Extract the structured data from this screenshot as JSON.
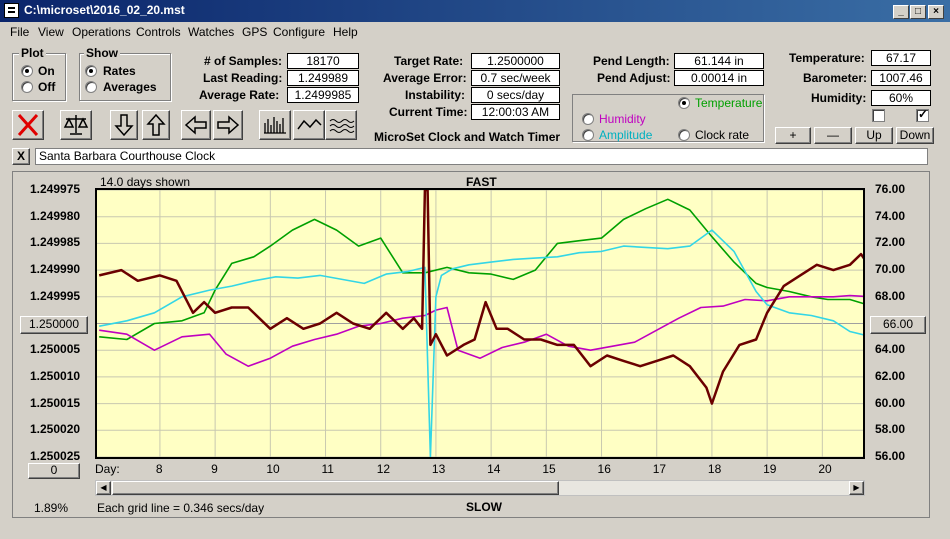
{
  "window": {
    "title": "C:\\microset\\2016_02_20.mst"
  },
  "menu": [
    "File",
    "View",
    "Operations",
    "Controls",
    "Watches",
    "GPS",
    "Configure",
    "Help"
  ],
  "plot_group": {
    "title": "Plot",
    "on": "On",
    "off": "Off",
    "selected": "On"
  },
  "show_group": {
    "title": "Show",
    "rates": "Rates",
    "averages": "Averages",
    "selected": "Rates"
  },
  "stats": {
    "samples_label": "# of Samples:",
    "samples": "18170",
    "last_label": "Last Reading:",
    "last": "1.249989",
    "avg_label": "Average Rate:",
    "avg": "1.2499985",
    "target_label": "Target Rate:",
    "target": "1.2500000",
    "avgerr_label": "Average Error:",
    "avgerr": "0.7 sec/week",
    "instab_label": "Instability:",
    "instab": "0 secs/day",
    "time_label": "Current Time:",
    "time": "12:00:03 AM",
    "pendlen_label": "Pend Length:",
    "pendlen": "61.144 in",
    "pendadj_label": "Pend Adjust:",
    "pendadj": "0.00014 in",
    "temp_label": "Temperature:",
    "temp": "67.17",
    "baro_label": "Barometer:",
    "baro": "1007.46",
    "hum_label": "Humidity:",
    "hum": "60%"
  },
  "app_caption": "MicroSet Clock and Watch Timer",
  "series_select": {
    "temperature": "Temperature",
    "humidity": "Humidity",
    "amplitude": "Amplitude",
    "clockrate": "Clock rate",
    "selected": "Temperature",
    "colors": {
      "temperature": "#00a000",
      "humidity": "#c000c0",
      "amplitude": "#00b0c0",
      "clockrate": "#000000"
    }
  },
  "right_buttons": {
    "plus": "+",
    "minus": "—",
    "up": "Up",
    "down": "Down"
  },
  "clock_name": "Santa Barbara Courthouse Clock",
  "close_x": "X",
  "chart_header": {
    "days_shown": "14.0 days shown",
    "fast": "FAST",
    "slow": "SLOW",
    "grid_note": "Each grid line = 0.346 secs/day",
    "percent": "1.89%",
    "day_label": "Day:"
  },
  "left_boxes": {
    "center": "1.250000",
    "bottom": "0"
  },
  "right_box": "66.00",
  "chart_data": {
    "type": "line",
    "x_label": "Day:",
    "x_ticks": [
      "8",
      "9",
      "10",
      "11",
      "12",
      "13",
      "14",
      "15",
      "16",
      "17",
      "18",
      "19",
      "20"
    ],
    "y_left_ticks": [
      "1.249975",
      "1.249980",
      "1.249985",
      "1.249990",
      "1.249995",
      "1.250000",
      "1.250005",
      "1.250010",
      "1.250015",
      "1.250020",
      "1.250025"
    ],
    "y_right_ticks": [
      "76.00",
      "74.00",
      "72.00",
      "70.00",
      "68.00",
      "66.00",
      "64.00",
      "62.00",
      "60.00",
      "58.00",
      "56.00"
    ],
    "ylim_left": [
      1.249975,
      1.250025
    ],
    "ylim_right": [
      56,
      76
    ],
    "grid": true,
    "series": [
      {
        "key": "clockrate",
        "color": "#6b0000",
        "x": [
          6.9,
          7.3,
          7.6,
          8.0,
          8.3,
          8.6,
          8.8,
          9.0,
          9.3,
          9.6,
          10.0,
          10.3,
          10.6,
          10.9,
          11.2,
          11.5,
          11.8,
          12.1,
          12.4,
          12.6,
          12.75,
          12.8,
          12.85,
          12.9,
          13.0,
          13.2,
          13.5,
          13.7,
          13.9,
          14.1,
          14.3,
          14.6,
          14.9,
          15.2,
          15.5,
          15.8,
          16.1,
          16.4,
          16.7,
          17.0,
          17.3,
          17.6,
          17.9,
          18.0,
          18.2,
          18.5,
          18.8,
          19.0,
          19.3,
          19.6,
          19.9,
          20.2,
          20.5,
          20.7,
          20.9
        ],
        "y": [
          1.249991,
          1.24999,
          1.249992,
          1.249991,
          1.249992,
          1.249998,
          1.249996,
          1.249998,
          1.249997,
          1.249997,
          1.250001,
          1.249999,
          1.250001,
          1.25,
          1.249998,
          1.25,
          1.250001,
          1.249998,
          1.250001,
          1.249999,
          1.250001,
          1.249975,
          1.249975,
          1.250004,
          1.250002,
          1.250006,
          1.250004,
          1.250003,
          1.249996,
          1.250001,
          1.250001,
          1.250003,
          1.250003,
          1.250004,
          1.250004,
          1.250008,
          1.250006,
          1.250007,
          1.250008,
          1.250007,
          1.250006,
          1.250008,
          1.250012,
          1.250015,
          1.250009,
          1.250004,
          1.250003,
          1.249998,
          1.249993,
          1.249991,
          1.249989,
          1.24999,
          1.249989,
          1.249987,
          1.24999
        ]
      },
      {
        "key": "temperature",
        "color": "#00a000",
        "x": [
          6.9,
          7.4,
          7.9,
          8.4,
          8.8,
          9.0,
          9.3,
          9.7,
          10.0,
          10.4,
          10.8,
          11.2,
          11.6,
          12.0,
          12.4,
          12.8,
          13.2,
          13.6,
          14.0,
          14.4,
          14.8,
          15.2,
          15.6,
          16.0,
          16.4,
          16.8,
          17.2,
          17.6,
          18.0,
          18.4,
          18.8,
          19.0,
          19.4,
          19.8,
          20.1,
          20.5,
          20.9
        ],
        "y": [
          65.0,
          64.8,
          66.0,
          66.2,
          66.8,
          68.5,
          70.5,
          71.0,
          71.8,
          73.0,
          73.8,
          73.0,
          71.8,
          72.4,
          69.8,
          69.8,
          70.2,
          69.8,
          69.7,
          69.3,
          70.0,
          72.0,
          72.2,
          72.4,
          73.8,
          74.6,
          75.3,
          74.5,
          72.5,
          70.6,
          69.0,
          68.7,
          68.4,
          68.0,
          67.8,
          67.8,
          67.3
        ]
      },
      {
        "key": "humidity",
        "color": "#c000c0",
        "x": [
          6.9,
          7.4,
          7.9,
          8.4,
          8.9,
          9.2,
          9.6,
          10.0,
          10.4,
          10.8,
          11.2,
          11.6,
          12.0,
          12.4,
          12.8,
          13.0,
          13.2,
          13.4,
          13.8,
          14.2,
          14.6,
          15.0,
          15.4,
          15.8,
          16.2,
          16.6,
          17.0,
          17.4,
          17.8,
          18.2,
          18.6,
          19.0,
          19.4,
          19.8,
          20.2,
          20.5,
          20.9
        ],
        "y": [
          65.5,
          65.2,
          64.0,
          65.0,
          65.2,
          63.7,
          62.8,
          63.4,
          64.3,
          64.8,
          65.2,
          65.8,
          66.0,
          66.4,
          66.6,
          67.0,
          67.2,
          64.0,
          63.4,
          64.2,
          64.6,
          65.2,
          64.3,
          64.0,
          64.3,
          64.6,
          65.5,
          66.4,
          67.2,
          67.3,
          67.8,
          67.7,
          68.0,
          68.0,
          68.0,
          68.1,
          68.0
        ]
      },
      {
        "key": "amplitude",
        "color": "#33d6e6",
        "x": [
          6.9,
          7.4,
          7.9,
          8.4,
          8.9,
          9.3,
          9.7,
          10.1,
          10.5,
          10.9,
          11.3,
          11.7,
          12.1,
          12.5,
          12.8,
          12.9,
          13.0,
          13.1,
          13.3,
          13.6,
          14.0,
          14.4,
          14.8,
          15.2,
          15.6,
          16.0,
          16.4,
          16.8,
          17.2,
          17.6,
          18.0,
          18.4,
          18.8,
          19.0,
          19.4,
          19.8,
          20.2,
          20.5,
          20.9
        ],
        "y": [
          65.8,
          66.2,
          66.8,
          68.0,
          68.5,
          68.8,
          69.2,
          69.5,
          69.4,
          69.6,
          69.3,
          69.0,
          69.7,
          69.9,
          70.2,
          56.0,
          68.0,
          69.6,
          70.1,
          70.4,
          70.6,
          70.8,
          70.9,
          71.0,
          71.3,
          71.4,
          71.8,
          71.7,
          71.6,
          71.8,
          73.0,
          71.4,
          68.4,
          67.4,
          66.8,
          66.6,
          66.2,
          65.4,
          65.0
        ]
      }
    ]
  }
}
